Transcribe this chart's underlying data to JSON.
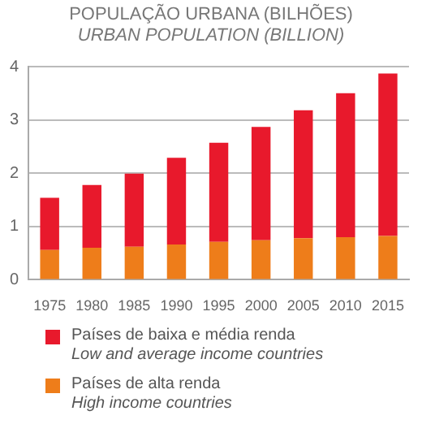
{
  "chart_data": {
    "type": "bar",
    "title": "POPULAÇÃO URBANA (BILHÕES)",
    "subtitle": "URBAN POPULATION (BILLION)",
    "categories": [
      "1975",
      "1980",
      "1985",
      "1990",
      "1995",
      "2000",
      "2005",
      "2010",
      "2015"
    ],
    "series": [
      {
        "name": "Países de alta renda\nHigh income countries",
        "color": "#ee7d1a",
        "values": [
          0.56,
          0.6,
          0.62,
          0.66,
          0.71,
          0.74,
          0.78,
          0.8,
          0.82
        ]
      },
      {
        "name": "Países de baixa e média renda\nLow and average income countries",
        "color": "#e8192c",
        "values": [
          0.98,
          1.18,
          1.37,
          1.63,
          1.86,
          2.13,
          2.4,
          2.7,
          3.05
        ]
      }
    ],
    "stacked": true,
    "ylim": [
      0,
      4
    ],
    "yticks": [
      0,
      1,
      2,
      3,
      4
    ],
    "grid": "y",
    "legend": "bottom"
  }
}
